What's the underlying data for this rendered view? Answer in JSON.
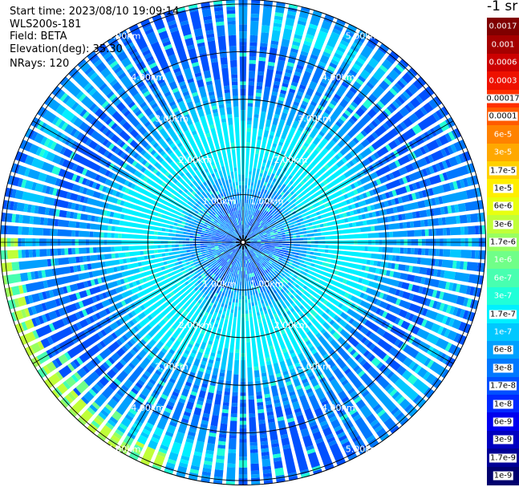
{
  "header": {
    "start_time": "Start time: 2023/08/10 19:09:14",
    "device": "WLS200s-181",
    "field": "Field: BETA",
    "elevation": "Elevation(deg): 35.30",
    "nrays": "NRays: 120"
  },
  "units_label": "-1 sr",
  "chart_data": {
    "type": "heatmap",
    "projection": "polar",
    "field": "BETA",
    "n_rays": 120,
    "range_rings": [
      {
        "label": "1.00km",
        "km": 1.0
      },
      {
        "label": "2.00km",
        "km": 2.0
      },
      {
        "label": "3.00km",
        "km": 3.0
      },
      {
        "label": "4.00km",
        "km": 4.0
      },
      {
        "label": "5.00km",
        "km": 5.0
      }
    ],
    "max_range_km": 5.1,
    "spoke_angles_deg": [
      0,
      30,
      60,
      90,
      120,
      150,
      180,
      210,
      240,
      270,
      300,
      330
    ],
    "color_scale": "log",
    "color_range": [
      1e-09,
      0.0017
    ],
    "colorbar": [
      {
        "label": "0.0017",
        "color": "#800000",
        "text": "light"
      },
      {
        "label": "0.001",
        "color": "#a50000",
        "text": "light"
      },
      {
        "label": "0.0006",
        "color": "#cc0000",
        "text": "light"
      },
      {
        "label": "0.0003",
        "color": "#ee1100",
        "text": "light"
      },
      {
        "label": "0.00017",
        "color": "#ff3000",
        "text": "dark"
      },
      {
        "label": "0.0001",
        "color": "#ff5a00",
        "text": "dark"
      },
      {
        "label": "6e-5",
        "color": "#ff8200",
        "text": "light"
      },
      {
        "label": "3e-5",
        "color": "#ffa800",
        "text": "light"
      },
      {
        "label": "1.7e-5",
        "color": "#ffd000",
        "text": "dark"
      },
      {
        "label": "1e-5",
        "color": "#ffee00",
        "text": "dark"
      },
      {
        "label": "6e-6",
        "color": "#e8ff10",
        "text": "dark"
      },
      {
        "label": "3e-6",
        "color": "#c0ff38",
        "text": "dark"
      },
      {
        "label": "1.7e-6",
        "color": "#98ff60",
        "text": "dark"
      },
      {
        "label": "1e-6",
        "color": "#70ff88",
        "text": "light"
      },
      {
        "label": "6e-7",
        "color": "#48ffb0",
        "text": "light"
      },
      {
        "label": "3e-7",
        "color": "#20ffd8",
        "text": "light"
      },
      {
        "label": "1.7e-7",
        "color": "#00f0ff",
        "text": "dark"
      },
      {
        "label": "1e-7",
        "color": "#00c8ff",
        "text": "light"
      },
      {
        "label": "6e-8",
        "color": "#00a0ff",
        "text": "dark"
      },
      {
        "label": "3e-8",
        "color": "#0078ff",
        "text": "dark"
      },
      {
        "label": "1.7e-8",
        "color": "#0050ff",
        "text": "dark"
      },
      {
        "label": "1e-8",
        "color": "#0028ff",
        "text": "dark"
      },
      {
        "label": "6e-9",
        "color": "#0000ee",
        "text": "dark"
      },
      {
        "label": "3e-9",
        "color": "#0000c0",
        "text": "dark"
      },
      {
        "label": "1.7e-9",
        "color": "#000096",
        "text": "dark"
      },
      {
        "label": "1e-9",
        "color": "#00006e",
        "text": "dark"
      }
    ]
  }
}
